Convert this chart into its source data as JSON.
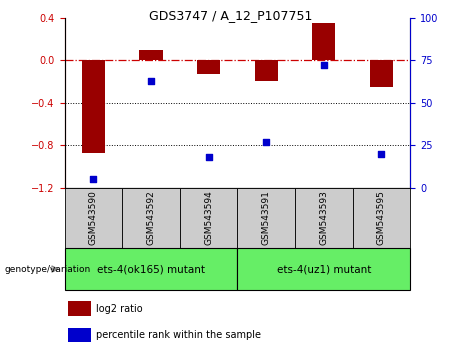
{
  "title": "GDS3747 / A_12_P107751",
  "samples": [
    "GSM543590",
    "GSM543592",
    "GSM543594",
    "GSM543591",
    "GSM543593",
    "GSM543595"
  ],
  "log2_ratio": [
    -0.87,
    0.1,
    -0.13,
    -0.2,
    0.35,
    -0.25
  ],
  "percentile_rank": [
    5,
    63,
    18,
    27,
    72,
    20
  ],
  "ylim_left": [
    -1.2,
    0.4
  ],
  "ylim_right": [
    0,
    100
  ],
  "yticks_left": [
    -1.2,
    -0.8,
    -0.4,
    0.0,
    0.4
  ],
  "yticks_right": [
    0,
    25,
    50,
    75,
    100
  ],
  "group1_label": "ets-4(ok165) mutant",
  "group2_label": "ets-4(uz1) mutant",
  "group_color": "#66EE66",
  "sample_box_color": "#cccccc",
  "bar_color": "#990000",
  "dot_color": "#0000CC",
  "hline_color": "#CC0000",
  "legend_bar_label": "log2 ratio",
  "legend_dot_label": "percentile rank within the sample",
  "genotype_label": "genotype/variation"
}
